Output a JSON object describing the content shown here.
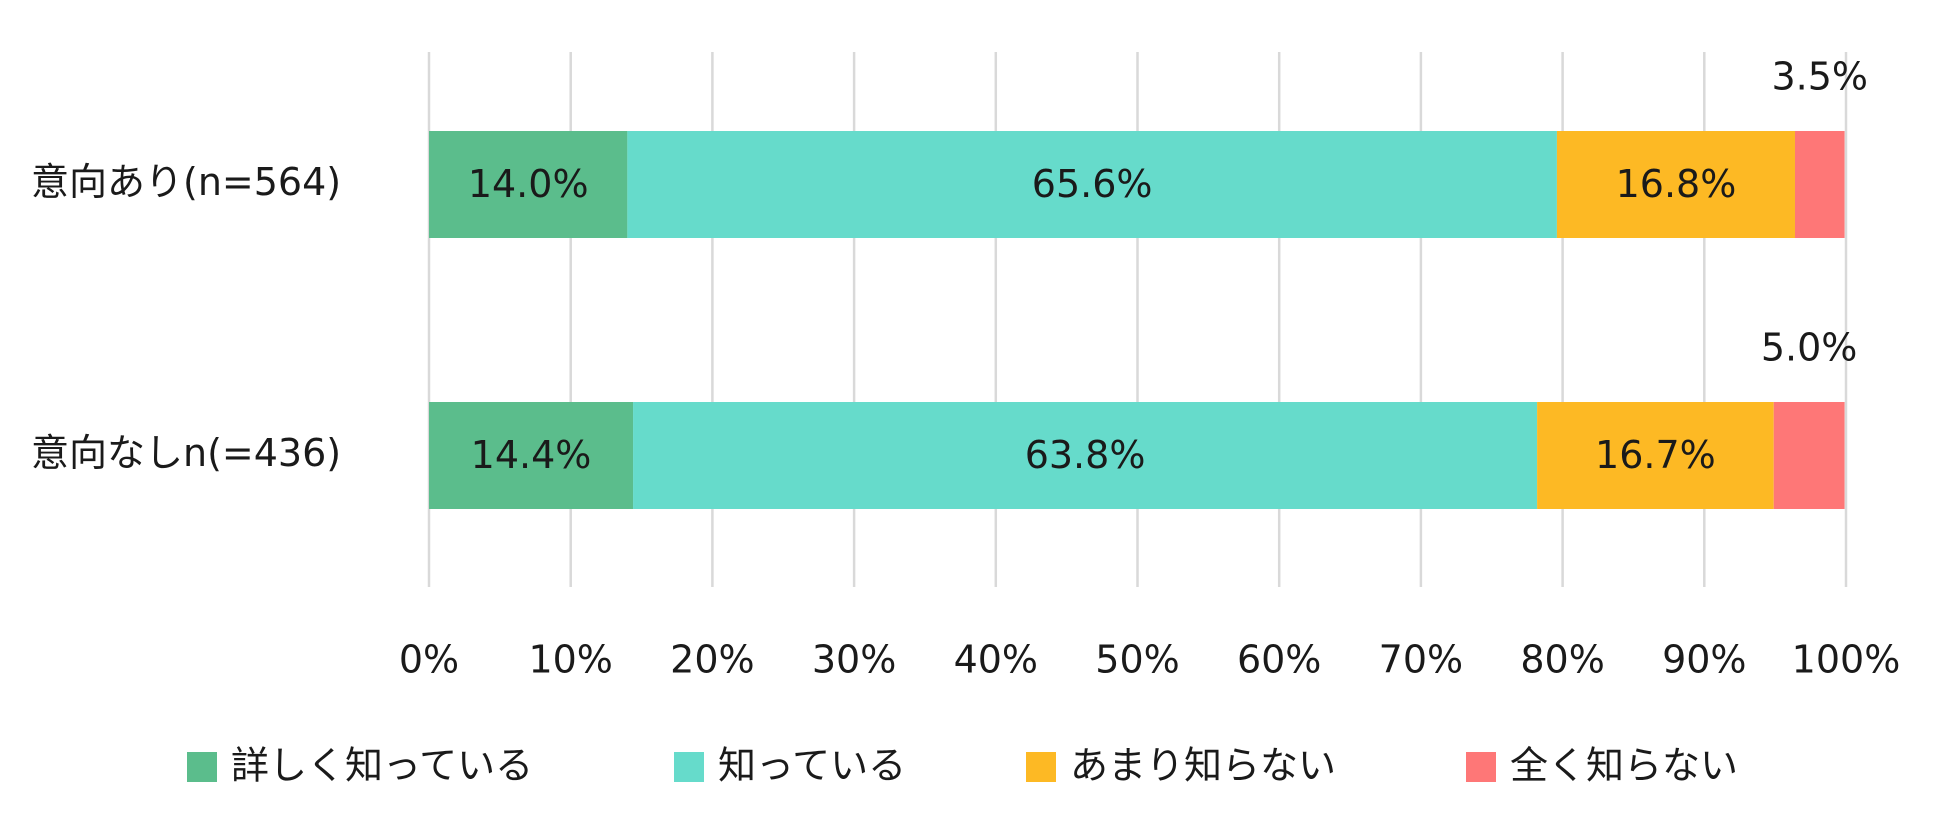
{
  "chart_data": {
    "type": "stacked-bar-horizontal",
    "categories": [
      "意向あり(n=564)",
      "意向なしn(=436)"
    ],
    "series": [
      {
        "name": "詳しく知っている",
        "color": "#5bbd8c",
        "values": [
          14.0,
          14.4
        ],
        "value_labels": [
          "14.0%",
          "14.4%"
        ]
      },
      {
        "name": "知っている",
        "color": "#66dbcb",
        "values": [
          65.6,
          63.8
        ],
        "value_labels": [
          "65.6%",
          "63.8%"
        ]
      },
      {
        "name": "あまり知らない",
        "color": "#fdb924",
        "values": [
          16.8,
          16.7
        ],
        "value_labels": [
          "16.8%",
          "16.7%"
        ]
      },
      {
        "name": "全く知らない",
        "color": "#fe7777",
        "values": [
          3.5,
          5.0
        ],
        "value_labels": [
          "3.5%",
          "5.0%"
        ]
      }
    ],
    "xlim": [
      0,
      100
    ],
    "xticks": [
      {
        "value": 0,
        "label": "0%"
      },
      {
        "value": 10,
        "label": "10%"
      },
      {
        "value": 20,
        "label": "20%"
      },
      {
        "value": 30,
        "label": "30%"
      },
      {
        "value": 40,
        "label": "40%"
      },
      {
        "value": 50,
        "label": "50%"
      },
      {
        "value": 60,
        "label": "60%"
      },
      {
        "value": 70,
        "label": "70%"
      },
      {
        "value": 80,
        "label": "80%"
      },
      {
        "value": 90,
        "label": "90%"
      },
      {
        "value": 100,
        "label": "100%"
      }
    ],
    "grid": true,
    "legend": "bottom"
  }
}
